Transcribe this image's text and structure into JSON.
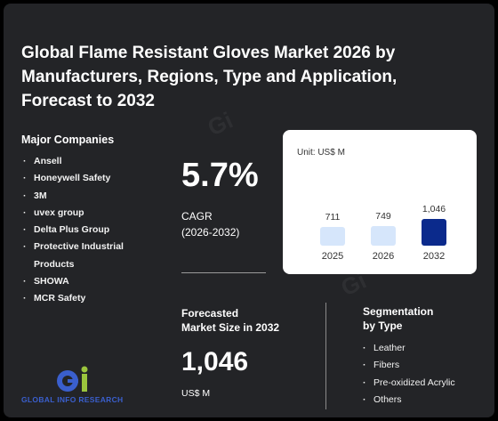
{
  "title": "Global Flame Resistant Gloves Market 2026 by Manufacturers, Regions, Type and Application, Forecast to 2032",
  "companies": {
    "heading": "Major Companies",
    "items": [
      "Ansell",
      "Honeywell Safety",
      "3M",
      "uvex group",
      "Delta Plus Group",
      "Protective Industrial Products",
      "SHOWA",
      "MCR Safety"
    ]
  },
  "cagr": {
    "value": "5.7%",
    "label": "CAGR",
    "period": "(2026-2032)"
  },
  "forecast": {
    "heading_line1": "Forecasted",
    "heading_line2": "Market Size in 2032",
    "value": "1,046",
    "unit": "US$ M"
  },
  "segmentation": {
    "heading_line1": "Segmentation",
    "heading_line2": "by Type",
    "items": [
      "Leather",
      "Fibers",
      "Pre-oxidized Acrylic",
      "Others"
    ]
  },
  "logo": {
    "text": "GLOBAL INFO RESEARCH"
  },
  "colors": {
    "bar_light": "#d6e6fb",
    "bar_highlight": "#0b2a8c",
    "background": "#232427"
  },
  "chart_data": {
    "type": "bar",
    "unit_label": "Unit: US$ M",
    "categories": [
      "2025",
      "2026",
      "2032"
    ],
    "values": [
      711,
      749,
      1046
    ],
    "value_labels": [
      "711",
      "749",
      "1,046"
    ]
  }
}
